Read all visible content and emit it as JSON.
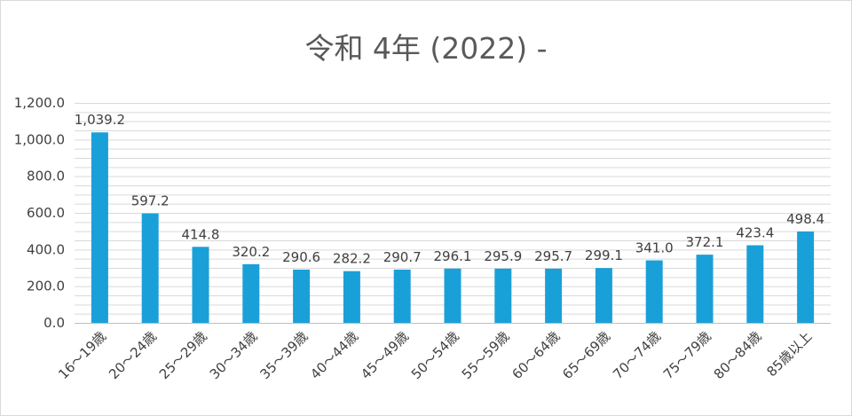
{
  "chart_data": {
    "type": "bar",
    "title": "令和 4年 (2022) -",
    "categories": [
      "16～19歳",
      "20～24歳",
      "25～29歳",
      "30～34歳",
      "35～39歳",
      "40～44歳",
      "45～49歳",
      "50～54歳",
      "55～59歳",
      "60～64歳",
      "65～69歳",
      "70～74歳",
      "75～79歳",
      "80～84歳",
      "85歳以上"
    ],
    "values": [
      1039.2,
      597.2,
      414.8,
      320.2,
      290.6,
      282.2,
      290.7,
      296.1,
      295.9,
      295.7,
      299.1,
      341.0,
      372.1,
      423.4,
      498.4
    ],
    "data_labels": [
      "1,039.2",
      "597.2",
      "414.8",
      "320.2",
      "290.6",
      "282.2",
      "290.7",
      "296.1",
      "295.9",
      "295.7",
      "299.1",
      "341.0",
      "372.1",
      "423.4",
      "498.4"
    ],
    "ylim": [
      0,
      1200
    ],
    "yticks": [
      "0.0",
      "200.0",
      "400.0",
      "600.0",
      "800.0",
      "1,000.0",
      "1,200.0"
    ],
    "xlabel": "",
    "ylabel": "",
    "grid": true,
    "legend": "none",
    "bar_color": "#1aa0d8",
    "grid_color": "#d9d9d9"
  }
}
